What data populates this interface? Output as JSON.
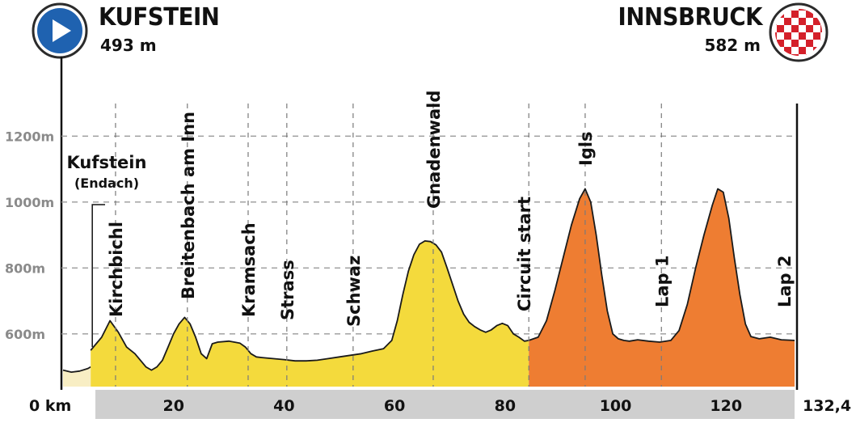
{
  "start": {
    "city": "KUFSTEIN",
    "altitude": "493 m",
    "icon": "play-icon",
    "color": "#1f62b0"
  },
  "finish": {
    "city": "INNSBRUCK",
    "altitude": "582 m",
    "icon": "checkered-flag-icon",
    "color": "#d4202a"
  },
  "chart_data": {
    "type": "area",
    "xlabel": "",
    "ylabel": "",
    "xlim": [
      0,
      132.4
    ],
    "ylim": [
      440,
      1300
    ],
    "x_ticks": [
      "0 km",
      "20",
      "40",
      "60",
      "80",
      "100",
      "120",
      "132,4"
    ],
    "y_ticks": [
      "600m",
      "800m",
      "1000m",
      "1200m"
    ],
    "grid": true,
    "series": [
      {
        "segment": "approach",
        "color": "#f8eec4",
        "x": [
          0,
          1.5,
          3,
          4.5,
          5.0
        ],
        "y": [
          490,
          484,
          487,
          495,
          500
        ]
      },
      {
        "segment": "main",
        "color": "#f4da3c",
        "x": [
          5.0,
          6,
          7,
          8.5,
          10,
          11.5,
          13,
          14,
          15,
          16,
          17,
          18,
          19,
          20,
          21,
          22,
          22.5,
          23,
          24,
          25,
          26,
          27,
          28,
          30,
          32,
          33,
          34,
          35,
          36,
          38,
          40,
          42,
          44,
          46,
          48,
          50,
          52,
          54,
          56,
          58,
          59.5,
          60.5,
          61.5,
          62.5,
          63.5,
          64.5,
          65.5,
          66.5,
          67.5,
          68.5,
          69.5,
          70.5,
          71.5,
          72.5,
          73.5,
          74.5,
          75.5,
          76.5,
          77.5,
          78.5,
          79.5,
          80.5,
          81.5,
          82.5,
          83.5,
          84.3
        ],
        "y": [
          550,
          570,
          590,
          640,
          605,
          560,
          540,
          520,
          500,
          490,
          500,
          520,
          560,
          600,
          630,
          650,
          640,
          630,
          590,
          540,
          525,
          570,
          575,
          578,
          572,
          560,
          540,
          530,
          528,
          525,
          522,
          518,
          518,
          520,
          525,
          530,
          535,
          540,
          548,
          555,
          580,
          640,
          720,
          790,
          840,
          872,
          882,
          880,
          870,
          848,
          800,
          750,
          700,
          660,
          635,
          622,
          612,
          605,
          612,
          625,
          632,
          625,
          600,
          590,
          578,
          580
        ]
      },
      {
        "segment": "circuit",
        "color": "#ee7d32",
        "x": [
          84.3,
          86,
          87.5,
          89,
          90.5,
          92,
          93.5,
          94.5,
          95.5,
          96.5,
          97.5,
          98.5,
          99.5,
          100.5,
          101.5,
          102.5,
          104,
          106,
          108,
          110,
          111.5,
          113,
          114.5,
          116,
          117.5,
          118.5,
          119.5,
          120.5,
          121.5,
          122.5,
          123.5,
          124.5,
          126,
          128,
          130,
          132.4
        ],
        "y": [
          580,
          590,
          640,
          730,
          830,
          930,
          1010,
          1040,
          1000,
          900,
          780,
          670,
          600,
          585,
          580,
          578,
          582,
          578,
          575,
          580,
          610,
          690,
          800,
          900,
          990,
          1040,
          1030,
          950,
          830,
          720,
          630,
          592,
          585,
          590,
          582,
          580
        ]
      }
    ],
    "labels": [
      {
        "text": "Kirchbichl",
        "x": 9.5
      },
      {
        "text": "Breitenbach am Inn",
        "x": 22.5
      },
      {
        "text": "Kramsach",
        "x": 33.5
      },
      {
        "text": "Strass",
        "x": 40.5
      },
      {
        "text": "Schwaz",
        "x": 52.5
      },
      {
        "text": "Gnadenwald",
        "x": 67.0
      },
      {
        "text": "Circuit start",
        "x": 84.3
      },
      {
        "text": "Igls",
        "x": 94.5
      },
      {
        "text": "Lap 1",
        "x": 108.3
      },
      {
        "text": "Lap 2",
        "x": 132.4
      }
    ],
    "start_label": {
      "text": "Kufstein",
      "subtext": "(Endach)",
      "x": 5.0
    }
  }
}
